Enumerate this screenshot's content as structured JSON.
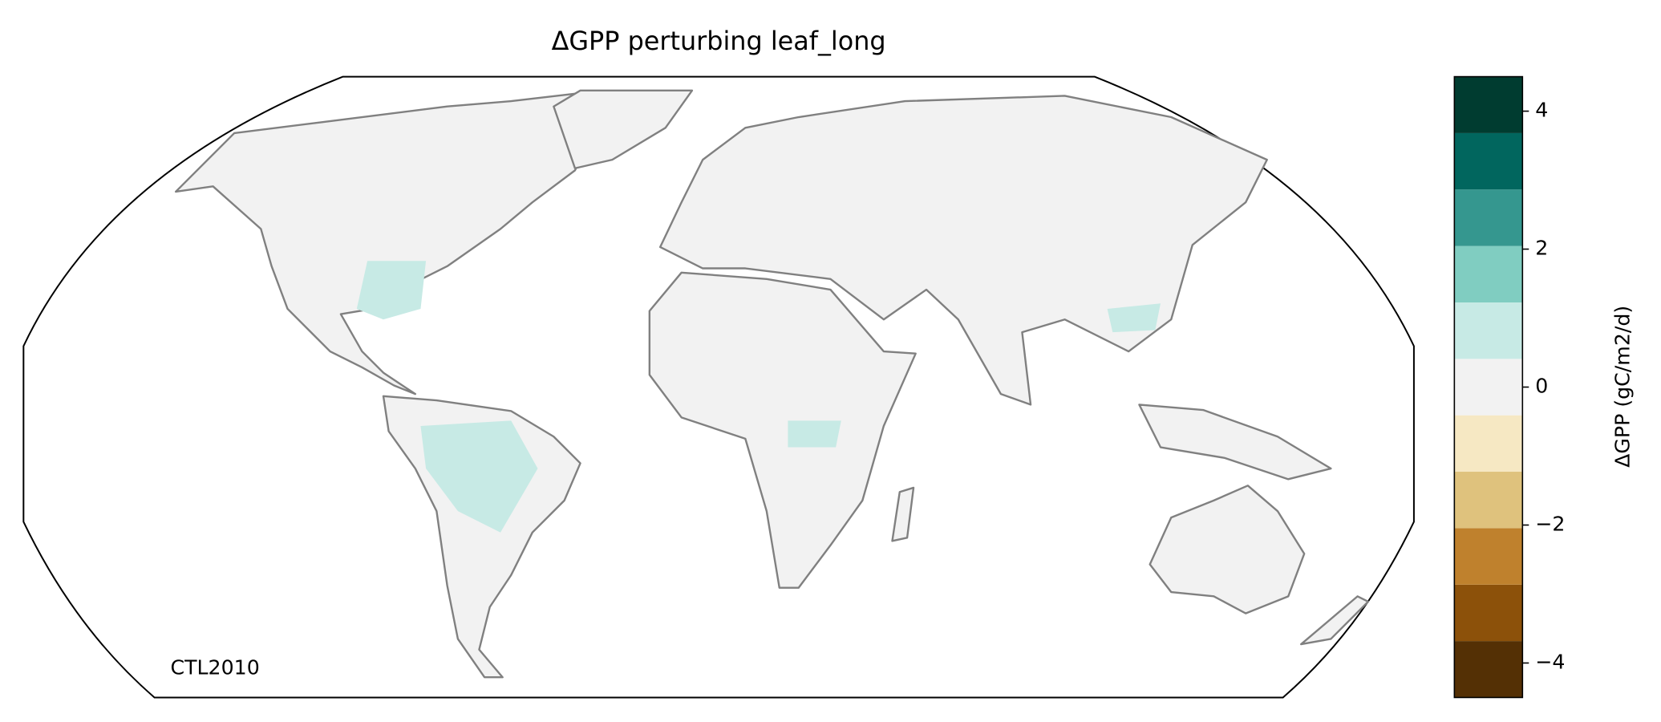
{
  "chart_data": {
    "type": "map",
    "title": "ΔGPP perturbing leaf_long",
    "annotation": "CTL2010",
    "colorbar": {
      "label": "ΔGPP (gC/m2/d)",
      "boundaries": [
        -4.5,
        -3.682,
        -2.864,
        -2.045,
        -1.227,
        -0.409,
        0.409,
        1.227,
        2.045,
        2.864,
        3.682,
        4.5
      ],
      "colors": [
        "#543005",
        "#8c510a",
        "#bf812d",
        "#dfc27d",
        "#f6e8c3",
        "#f2f2f2",
        "#c7eae5",
        "#80cdc1",
        "#35978f",
        "#01665e",
        "#003c30"
      ],
      "lim": [
        -4.5,
        4.5
      ],
      "ticks": [
        {
          "value": -4,
          "label": "−4"
        },
        {
          "value": -2,
          "label": "−2"
        },
        0,
        2,
        4
      ]
    }
  }
}
